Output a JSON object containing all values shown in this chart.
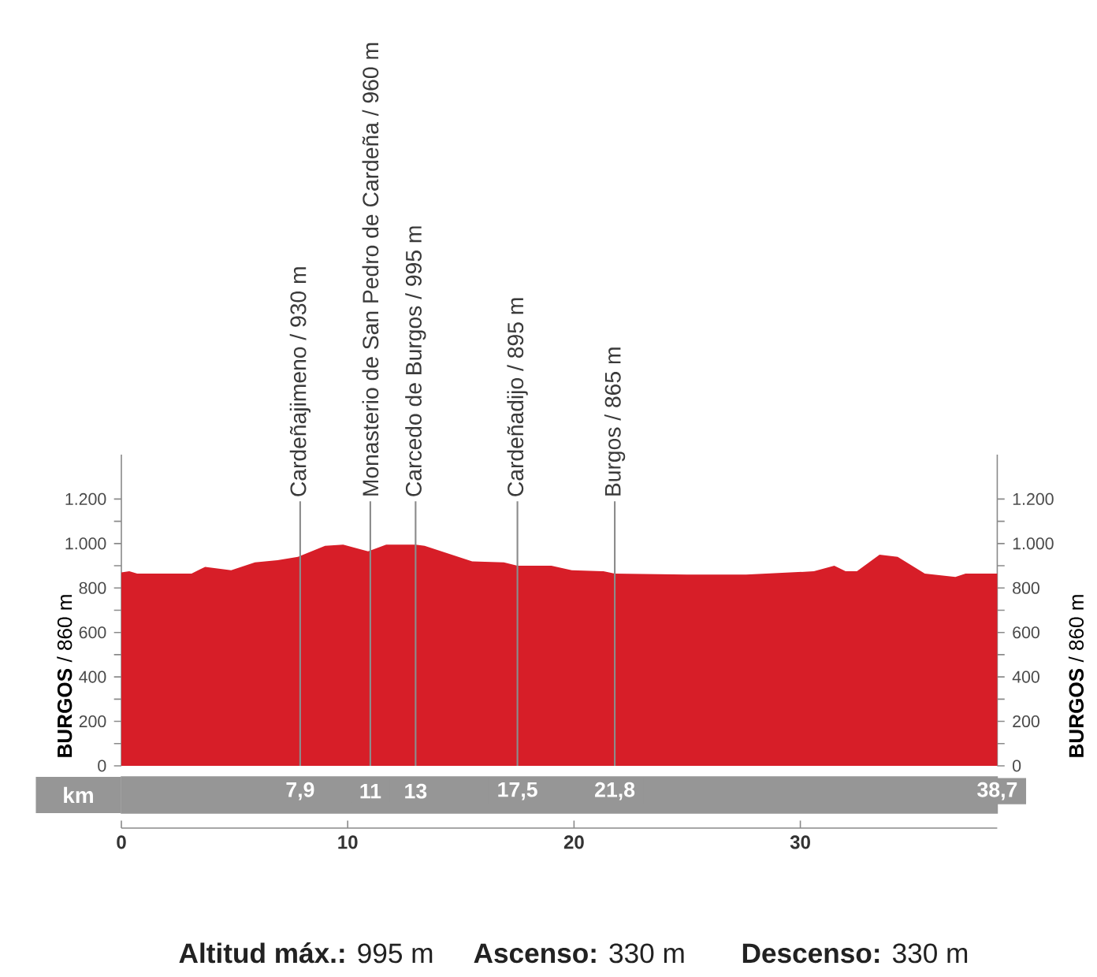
{
  "chart_data": {
    "type": "area",
    "x": [
      0,
      0.35,
      0.7,
      3.1,
      3.7,
      4.85,
      5.9,
      6.9,
      7.8,
      9.0,
      9.8,
      10.9,
      11.7,
      13.0,
      13.4,
      15.5,
      16.9,
      17.5,
      19.0,
      19.9,
      21.3,
      21.8,
      25.0,
      27.6,
      30.6,
      31.5,
      32.0,
      32.5,
      33.5,
      34.3,
      35.5,
      36.85,
      37.3,
      38.7
    ],
    "series": [
      {
        "color": "#d71e28",
        "values": [
          870,
          875,
          865,
          865,
          895,
          880,
          915,
          925,
          940,
          990,
          995,
          965,
          995,
          995,
          990,
          920,
          915,
          900,
          900,
          880,
          875,
          865,
          860,
          860,
          875,
          900,
          875,
          875,
          950,
          940,
          865,
          850,
          865,
          865
        ]
      }
    ],
    "xlim": [
      0,
      38.7
    ],
    "xticks": [
      0,
      10,
      20,
      30
    ],
    "ylim": [
      0,
      1400
    ],
    "yticks": [
      0,
      {
        "value": 100,
        "label": null
      },
      200,
      {
        "value": 300,
        "label": null
      },
      400,
      {
        "value": 500,
        "label": null
      },
      600,
      {
        "value": 700,
        "label": null
      },
      800,
      {
        "value": 900,
        "label": null
      },
      {
        "value": 1000,
        "label": "1.000"
      },
      {
        "value": 1100,
        "label": null
      },
      {
        "value": 1200,
        "label": "1.200"
      }
    ],
    "y2lim": [
      0,
      1400
    ],
    "y2ticks": [
      0,
      {
        "value": 100,
        "label": null
      },
      200,
      {
        "value": 300,
        "label": null
      },
      400,
      {
        "value": 500,
        "label": null
      },
      600,
      {
        "value": 700,
        "label": null
      },
      800,
      {
        "value": 900,
        "label": null
      },
      {
        "value": 1000,
        "label": "1.000"
      },
      {
        "value": 1100,
        "label": null
      },
      {
        "value": 1200,
        "label": "1.200"
      }
    ],
    "x2lim": [
      0,
      38.7
    ],
    "x2ticks": [
      {
        "value": 7.9,
        "label": "7,9"
      },
      11,
      13,
      {
        "value": 17.5,
        "label": "17,5"
      },
      {
        "value": 21.8,
        "label": "21,8"
      },
      {
        "value": 38.7,
        "label": "38,7"
      }
    ],
    "x2label": "km",
    "ylabel": "**BURGOS** / 860 m",
    "y2label": "**BURGOS** / 860 m",
    "ref_lines": [
      {
        "axis": "x",
        "value": 7.9,
        "label": "Cardeñajimeno / 930 m",
        "color": "#8c8c8c"
      },
      {
        "axis": "x",
        "value": 11,
        "label": "Monasterio de San Pedro de Cardeña / 960 m",
        "color": "#8c8c8c"
      },
      {
        "axis": "x",
        "value": 13,
        "label": "Carcedo de Burgos / 995 m",
        "color": "#8c8c8c"
      },
      {
        "axis": "x",
        "value": 17.5,
        "label": "Cardeñadijo / 895 m",
        "color": "#8c8c8c"
      },
      {
        "axis": "x",
        "value": 21.8,
        "label": "Burgos / 865 m",
        "color": "#8c8c8c"
      }
    ],
    "annotations": [
      "**Altitud máx.:** 995 m",
      "**Ascenso:** 330 m",
      "**Descenso:** 330 m"
    ]
  }
}
